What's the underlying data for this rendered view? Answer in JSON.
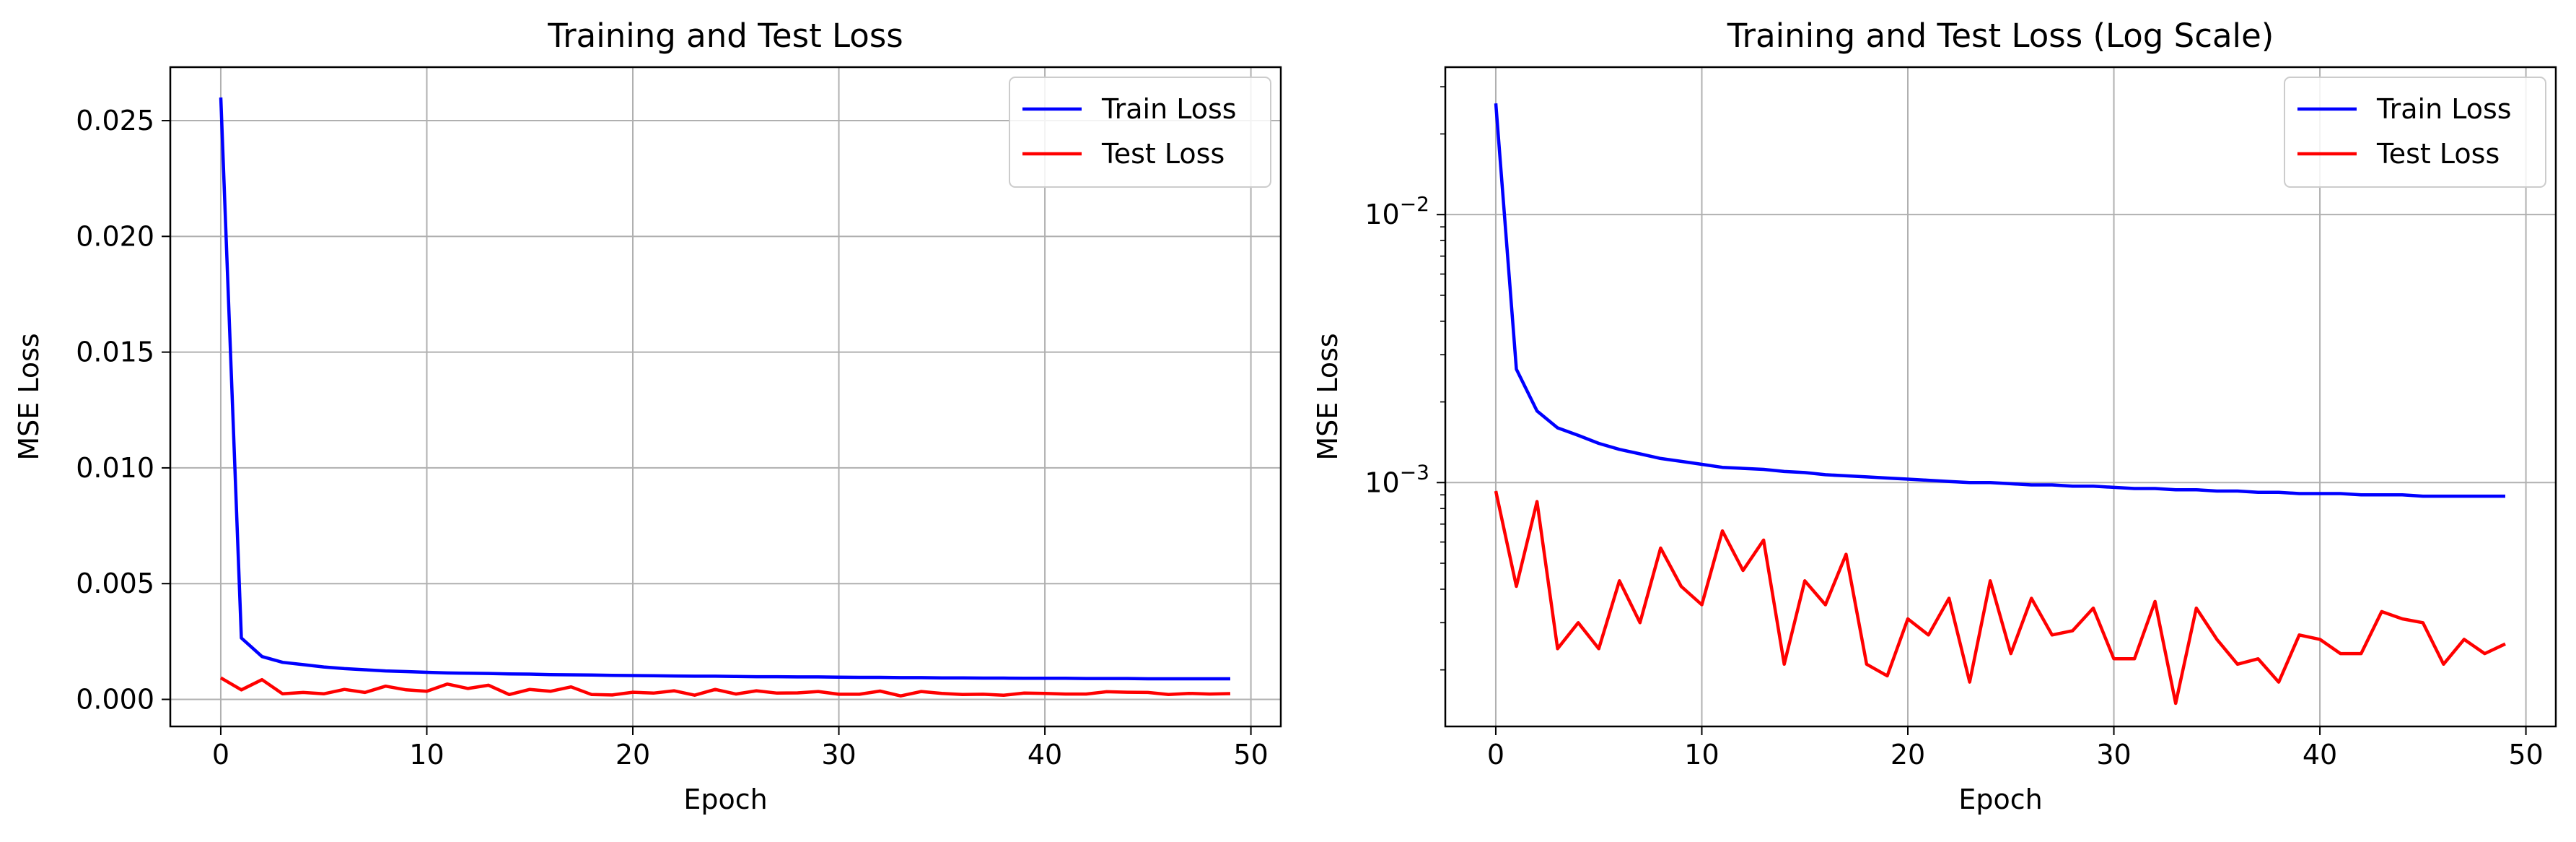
{
  "chart_data": [
    {
      "type": "line",
      "title": "Training and Test Loss",
      "xlabel": "Epoch",
      "ylabel": "MSE Loss",
      "yscale": "linear",
      "xlim": [
        -2.45,
        51.45
      ],
      "ylim": [
        -0.00117,
        0.02731
      ],
      "xticks": [
        0,
        10,
        20,
        30,
        40,
        50
      ],
      "xtick_labels": [
        "0",
        "10",
        "20",
        "30",
        "40",
        "50"
      ],
      "yticks": [
        0,
        0.005,
        0.01,
        0.015,
        0.02,
        0.025
      ],
      "ytick_labels": [
        "0.000",
        "0.005",
        "0.010",
        "0.015",
        "0.020",
        "0.025"
      ],
      "grid": true,
      "legend_position": "top-right",
      "x": [
        0,
        1,
        2,
        3,
        4,
        5,
        6,
        7,
        8,
        9,
        10,
        11,
        12,
        13,
        14,
        15,
        16,
        17,
        18,
        19,
        20,
        21,
        22,
        23,
        24,
        25,
        26,
        27,
        28,
        29,
        30,
        31,
        32,
        33,
        34,
        35,
        36,
        37,
        38,
        39,
        40,
        41,
        42,
        43,
        44,
        45,
        46,
        47,
        48,
        49
      ],
      "series": [
        {
          "name": "Train Loss",
          "color": "#0000ff",
          "values": [
            0.026,
            0.00265,
            0.00185,
            0.0016,
            0.0015,
            0.0014,
            0.00133,
            0.00128,
            0.00123,
            0.0012,
            0.00117,
            0.00114,
            0.00113,
            0.00112,
            0.0011,
            0.00109,
            0.00107,
            0.00106,
            0.00105,
            0.00104,
            0.00103,
            0.00102,
            0.00101,
            0.001,
            0.001,
            0.00099,
            0.00098,
            0.00098,
            0.00097,
            0.00097,
            0.00096,
            0.00095,
            0.00095,
            0.00094,
            0.00094,
            0.00093,
            0.00093,
            0.00092,
            0.00092,
            0.00091,
            0.00091,
            0.00091,
            0.0009,
            0.0009,
            0.0009,
            0.00089,
            0.00089,
            0.00089,
            0.00089,
            0.00089
          ]
        },
        {
          "name": "Test Loss",
          "color": "#ff0000",
          "values": [
            0.00093,
            0.00041,
            0.00085,
            0.00024,
            0.0003,
            0.00024,
            0.00043,
            0.0003,
            0.00057,
            0.00041,
            0.00035,
            0.00066,
            0.00047,
            0.00061,
            0.00021,
            0.00043,
            0.00035,
            0.00054,
            0.00021,
            0.00019,
            0.00031,
            0.00027,
            0.00037,
            0.00018,
            0.00043,
            0.00023,
            0.00037,
            0.00027,
            0.00028,
            0.00034,
            0.00022,
            0.00022,
            0.00036,
            0.00015,
            0.00034,
            0.00026,
            0.00021,
            0.00022,
            0.00018,
            0.00027,
            0.00026,
            0.00023,
            0.00023,
            0.00033,
            0.00031,
            0.0003,
            0.00021,
            0.00026,
            0.00023,
            0.00025
          ]
        }
      ]
    },
    {
      "type": "line",
      "title": "Training and Test Loss (Log Scale)",
      "xlabel": "Epoch",
      "ylabel": "MSE Loss",
      "yscale": "log",
      "xlim": [
        -2.45,
        51.45
      ],
      "ylim": [
        0.000123,
        0.0355
      ],
      "xticks": [
        0,
        10,
        20,
        30,
        40,
        50
      ],
      "xtick_labels": [
        "0",
        "10",
        "20",
        "30",
        "40",
        "50"
      ],
      "yticks_major": [
        0.001,
        0.01
      ],
      "ytick_labels": [
        {
          "base": "10",
          "exp": "−3"
        },
        {
          "base": "10",
          "exp": "−2"
        }
      ],
      "grid": true,
      "legend_position": "top-right",
      "x": [
        0,
        1,
        2,
        3,
        4,
        5,
        6,
        7,
        8,
        9,
        10,
        11,
        12,
        13,
        14,
        15,
        16,
        17,
        18,
        19,
        20,
        21,
        22,
        23,
        24,
        25,
        26,
        27,
        28,
        29,
        30,
        31,
        32,
        33,
        34,
        35,
        36,
        37,
        38,
        39,
        40,
        41,
        42,
        43,
        44,
        45,
        46,
        47,
        48,
        49
      ],
      "series": [
        {
          "name": "Train Loss",
          "color": "#0000ff",
          "values": [
            0.026,
            0.00265,
            0.00185,
            0.0016,
            0.0015,
            0.0014,
            0.00133,
            0.00128,
            0.00123,
            0.0012,
            0.00117,
            0.00114,
            0.00113,
            0.00112,
            0.0011,
            0.00109,
            0.00107,
            0.00106,
            0.00105,
            0.00104,
            0.00103,
            0.00102,
            0.00101,
            0.001,
            0.001,
            0.00099,
            0.00098,
            0.00098,
            0.00097,
            0.00097,
            0.00096,
            0.00095,
            0.00095,
            0.00094,
            0.00094,
            0.00093,
            0.00093,
            0.00092,
            0.00092,
            0.00091,
            0.00091,
            0.00091,
            0.0009,
            0.0009,
            0.0009,
            0.00089,
            0.00089,
            0.00089,
            0.00089,
            0.00089
          ]
        },
        {
          "name": "Test Loss",
          "color": "#ff0000",
          "values": [
            0.00093,
            0.00041,
            0.00085,
            0.00024,
            0.0003,
            0.00024,
            0.00043,
            0.0003,
            0.00057,
            0.00041,
            0.00035,
            0.00066,
            0.00047,
            0.00061,
            0.00021,
            0.00043,
            0.00035,
            0.00054,
            0.00021,
            0.00019,
            0.00031,
            0.00027,
            0.00037,
            0.00018,
            0.00043,
            0.00023,
            0.00037,
            0.00027,
            0.00028,
            0.00034,
            0.00022,
            0.00022,
            0.00036,
            0.00015,
            0.00034,
            0.00026,
            0.00021,
            0.00022,
            0.00018,
            0.00027,
            0.00026,
            0.00023,
            0.00023,
            0.00033,
            0.00031,
            0.0003,
            0.00021,
            0.00026,
            0.00023,
            0.00025
          ]
        }
      ]
    }
  ]
}
